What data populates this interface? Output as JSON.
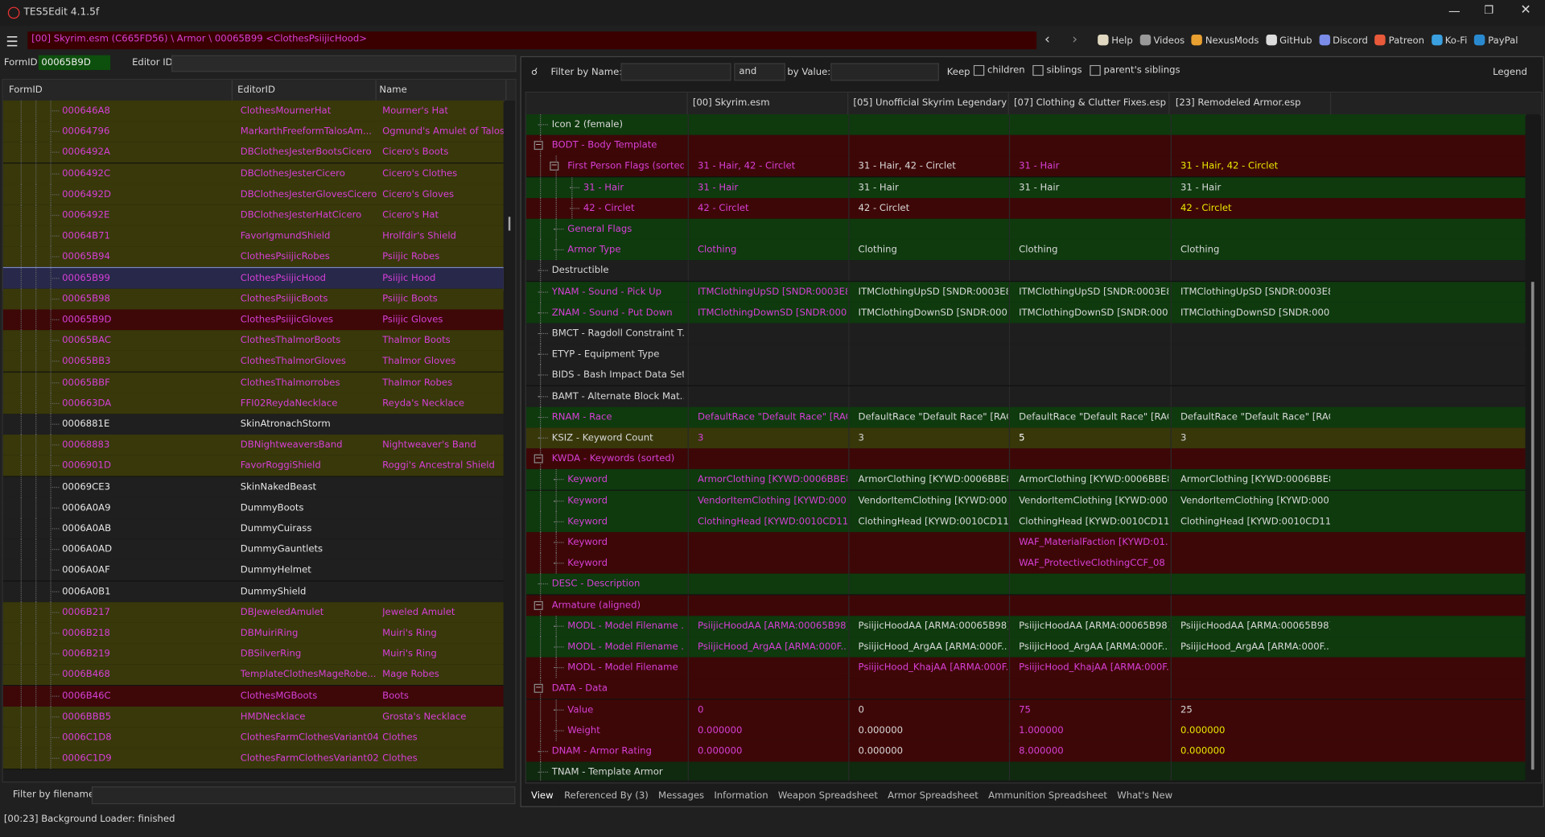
{
  "window": {
    "title": "TES5Edit 4.1.5f"
  },
  "path": "[00] Skyrim.esm (C665FD56) \\ Armor \\ 00065B99 <ClothesPsiijicHood>",
  "toolbar": [
    "Help",
    "Videos",
    "NexusMods",
    "GitHub",
    "Discord",
    "Patreon",
    "Ko-Fi",
    "PayPal"
  ],
  "form_id": {
    "label": "FormID",
    "value": "00065B9D"
  },
  "editor_id": {
    "label": "Editor ID"
  },
  "list": {
    "columns": [
      "FormID",
      "EditorID",
      "Name"
    ],
    "rows": [
      {
        "cells": [
          "000646A8",
          "ClothesMournerHat",
          "Mourner's Hat"
        ],
        "bg": "#38380a",
        "fg": "#d63fd6"
      },
      {
        "cells": [
          "00064796",
          "MarkarthFreeformTalosAm...",
          "Ogmund's Amulet of Talos"
        ],
        "bg": "#38380a",
        "fg": "#d63fd6"
      },
      {
        "cells": [
          "0006492A",
          "DBClothesJesterBootsCicero",
          "Cicero's Boots"
        ],
        "bg": "#38380a",
        "fg": "#d63fd6"
      },
      {
        "cells": [
          "0006492C",
          "DBClothesJesterCicero",
          "Cicero's Clothes"
        ],
        "bg": "#38380a",
        "fg": "#d63fd6"
      },
      {
        "cells": [
          "0006492D",
          "DBClothesJesterGlovesCicero",
          "Cicero's Gloves"
        ],
        "bg": "#38380a",
        "fg": "#d63fd6"
      },
      {
        "cells": [
          "0006492E",
          "DBClothesJesterHatCicero",
          "Cicero's Hat"
        ],
        "bg": "#38380a",
        "fg": "#d63fd6"
      },
      {
        "cells": [
          "00064B71",
          "FavorIgmundShield",
          "Hrolfdir's Shield"
        ],
        "bg": "#38380a",
        "fg": "#d63fd6"
      },
      {
        "cells": [
          "00065B94",
          "ClothesPsiijicRobes",
          "Psiijic Robes"
        ],
        "bg": "#38380a",
        "fg": "#d63fd6"
      },
      {
        "cells": [
          "00065B99",
          "ClothesPsiijicHood",
          "Psiijic Hood"
        ],
        "bg": "#27284a",
        "fg": "#d63fd6"
      },
      {
        "cells": [
          "00065B98",
          "ClothesPsiijicBoots",
          "Psiijic Boots"
        ],
        "bg": "#38380a",
        "fg": "#d63fd6"
      },
      {
        "cells": [
          "00065B9D",
          "ClothesPsiijicGloves",
          "Psiijic Gloves"
        ],
        "bg": "#3e0808",
        "fg": "#d63fd6"
      },
      {
        "cells": [
          "00065BAC",
          "ClothesThalmorBoots",
          "Thalmor Boots"
        ],
        "bg": "#38380a",
        "fg": "#d63fd6"
      },
      {
        "cells": [
          "00065BB3",
          "ClothesThalmorGloves",
          "Thalmor Gloves"
        ],
        "bg": "#38380a",
        "fg": "#d63fd6"
      },
      {
        "cells": [
          "00065BBF",
          "ClothesThalmorrobes",
          "Thalmor Robes"
        ],
        "bg": "#38380a",
        "fg": "#d63fd6"
      },
      {
        "cells": [
          "000663DA",
          "FFI02ReydaNecklace",
          "Reyda's Necklace"
        ],
        "bg": "#38380a",
        "fg": "#d63fd6"
      },
      {
        "cells": [
          "0006881E",
          "SkinAtronachStorm",
          null
        ],
        "bg": "#1f1f1f",
        "fg": "#e6e6e6"
      },
      {
        "cells": [
          "00068883",
          "DBNightweaversBand",
          "Nightweaver's Band"
        ],
        "bg": "#38380a",
        "fg": "#d63fd6"
      },
      {
        "cells": [
          "0006901D",
          "FavorRoggiShield",
          "Roggi's Ancestral Shield"
        ],
        "bg": "#38380a",
        "fg": "#d63fd6"
      },
      {
        "cells": [
          "00069CE3",
          "SkinNakedBeast",
          null
        ],
        "bg": "#1f1f1f",
        "fg": "#e6e6e6"
      },
      {
        "cells": [
          "0006A0A9",
          "DummyBoots",
          null
        ],
        "bg": "#1f1f1f",
        "fg": "#e6e6e6"
      },
      {
        "cells": [
          "0006A0AB",
          "DummyCuirass",
          null
        ],
        "bg": "#1f1f1f",
        "fg": "#e6e6e6"
      },
      {
        "cells": [
          "0006A0AD",
          "DummyGauntlets",
          null
        ],
        "bg": "#1f1f1f",
        "fg": "#e6e6e6"
      },
      {
        "cells": [
          "0006A0AF",
          "DummyHelmet",
          null
        ],
        "bg": "#1f1f1f",
        "fg": "#e6e6e6"
      },
      {
        "cells": [
          "0006A0B1",
          "DummyShield",
          null
        ],
        "bg": "#1f1f1f",
        "fg": "#e6e6e6"
      },
      {
        "cells": [
          "0006B217",
          "DBJeweledAmulet",
          "Jeweled Amulet"
        ],
        "bg": "#38380a",
        "fg": "#d63fd6"
      },
      {
        "cells": [
          "0006B218",
          "DBMuiriRing",
          "Muiri's Ring"
        ],
        "bg": "#38380a",
        "fg": "#d63fd6"
      },
      {
        "cells": [
          "0006B219",
          "DBSilverRing",
          "Muiri's Ring"
        ],
        "bg": "#38380a",
        "fg": "#d63fd6"
      },
      {
        "cells": [
          "0006B468",
          "TemplateClothesMageRobe...",
          "Mage Robes"
        ],
        "bg": "#38380a",
        "fg": "#d63fd6"
      },
      {
        "cells": [
          "0006B46C",
          "ClothesMGBoots",
          "Boots"
        ],
        "bg": "#3e0808",
        "fg": "#d63fd6"
      },
      {
        "cells": [
          "0006BBB5",
          "HMDNecklace",
          "Grosta's Necklace"
        ],
        "bg": "#38380a",
        "fg": "#d63fd6"
      },
      {
        "cells": [
          "0006C1D8",
          "ClothesFarmClothesVariant04",
          "Clothes"
        ],
        "bg": "#38380a",
        "fg": "#d63fd6"
      },
      {
        "cells": [
          "0006C1D9",
          "ClothesFarmClothesVariant02",
          "Clothes"
        ],
        "bg": "#38380a",
        "fg": "#d63fd6"
      }
    ]
  },
  "filename_filter": "Filter by filename:",
  "filter": {
    "name_label": "Filter by Name:",
    "op": "and",
    "value_label": "by Value:",
    "keep": "Keep",
    "checks": [
      "children",
      "siblings",
      "parent's siblings"
    ],
    "legend": "Legend"
  },
  "record": {
    "columns": [
      "[00] Skyrim.esm",
      "[05] Unofficial Skyrim Legendary ...",
      "[07] Clothing & Clutter Fixes.esp",
      "[23] Remodeled Armor.esp"
    ],
    "rows": [
      {
        "label": "Icon 2 (female)",
        "level": 1,
        "bg": "#0e3a0e",
        "fg": "#d8d8d8"
      },
      {
        "label": "BODT - Body Template",
        "level": 1,
        "expanded": true,
        "bg": "#3e0707",
        "fg": "#d63fd6"
      },
      {
        "label": "First Person Flags (sorted)",
        "level": 2,
        "expanded": true,
        "bg": "#3e0707",
        "fg": "#d63fd6",
        "values": [
          "31 - Hair, 42 - Circlet",
          "31 - Hair, 42 - Circlet",
          "31 - Hair",
          "31 - Hair, 42 - Circlet"
        ],
        "value_colors": [
          "#d63fd6",
          "#d8d8d8",
          "#d63fd6",
          "#e8e800"
        ]
      },
      {
        "label": "31 - Hair",
        "level": 3,
        "bg": "#0e3a0e",
        "fg": "#d63fd6",
        "values": [
          "31 - Hair",
          "31 - Hair",
          "31 - Hair",
          "31 - Hair"
        ],
        "value_colors": [
          "#d63fd6",
          "#d8d8d8",
          "#d8d8d8",
          "#d8d8d8"
        ]
      },
      {
        "label": "42 - Circlet",
        "level": 3,
        "bg": "#3e0707",
        "fg": "#d63fd6",
        "values": [
          "42 - Circlet",
          "42 - Circlet",
          null,
          "42 - Circlet"
        ],
        "value_colors": [
          "#d63fd6",
          "#d8d8d8",
          "#d8d8d8",
          "#e8e800"
        ]
      },
      {
        "label": "General Flags",
        "level": 2,
        "bg": "#0e3a0e",
        "fg": "#d63fd6"
      },
      {
        "label": "Armor Type",
        "level": 2,
        "bg": "#0e3a0e",
        "fg": "#d63fd6",
        "values": [
          "Clothing",
          "Clothing",
          "Clothing",
          "Clothing"
        ],
        "value_colors": [
          "#d63fd6",
          "#d8d8d8",
          "#d8d8d8",
          "#d8d8d8"
        ]
      },
      {
        "label": "Destructible",
        "level": 1,
        "bg": "#1e1e1e",
        "fg": "#d8d8d8"
      },
      {
        "label": "YNAM - Sound - Pick Up",
        "level": 1,
        "bg": "#0e3a0e",
        "fg": "#d63fd6",
        "values": [
          "ITMClothingUpSD [SNDR:0003E8...",
          "ITMClothingUpSD [SNDR:0003E8...",
          "ITMClothingUpSD [SNDR:0003E8...",
          "ITMClothingUpSD [SNDR:0003E8..."
        ],
        "value_colors": [
          "#d63fd6",
          "#d8d8d8",
          "#d8d8d8",
          "#d8d8d8"
        ]
      },
      {
        "label": "ZNAM - Sound - Put Down",
        "level": 1,
        "bg": "#0e3a0e",
        "fg": "#d63fd6",
        "values": [
          "ITMClothingDownSD [SNDR:000...",
          "ITMClothingDownSD [SNDR:000...",
          "ITMClothingDownSD [SNDR:000...",
          "ITMClothingDownSD [SNDR:000..."
        ],
        "value_colors": [
          "#d63fd6",
          "#d8d8d8",
          "#d8d8d8",
          "#d8d8d8"
        ]
      },
      {
        "label": "BMCT - Ragdoll Constraint T...",
        "level": 1,
        "bg": "#1e1e1e",
        "fg": "#d8d8d8"
      },
      {
        "label": "ETYP - Equipment Type",
        "level": 1,
        "bg": "#1e1e1e",
        "fg": "#d8d8d8"
      },
      {
        "label": "BIDS - Bash Impact Data Set",
        "level": 1,
        "bg": "#1e1e1e",
        "fg": "#d8d8d8"
      },
      {
        "label": "BAMT - Alternate Block Mat...",
        "level": 1,
        "bg": "#1e1e1e",
        "fg": "#d8d8d8"
      },
      {
        "label": "RNAM - Race",
        "level": 1,
        "bg": "#0e3a0e",
        "fg": "#d63fd6",
        "values": [
          "DefaultRace \"Default Race\" [RAC...",
          "DefaultRace \"Default Race\" [RAC...",
          "DefaultRace \"Default Race\" [RAC...",
          "DefaultRace \"Default Race\" [RAC..."
        ],
        "value_colors": [
          "#d63fd6",
          "#d8d8d8",
          "#d8d8d8",
          "#d8d8d8"
        ]
      },
      {
        "label": "KSIZ - Keyword Count",
        "level": 1,
        "bg": "#37370a",
        "fg": "#d8d8d8",
        "values": [
          "3",
          "3",
          "5",
          "3"
        ],
        "value_colors": [
          "#d63fd6",
          "#d8d8d8",
          "#ffffff",
          "#d8d8d8"
        ]
      },
      {
        "label": "KWDA - Keywords (sorted)",
        "level": 1,
        "expanded": true,
        "bg": "#3e0707",
        "fg": "#d63fd6"
      },
      {
        "label": "Keyword",
        "level": 2,
        "bg": "#0e3a0e",
        "fg": "#d63fd6",
        "values": [
          "ArmorClothing [KYWD:0006BBE8]",
          "ArmorClothing [KYWD:0006BBE8]",
          "ArmorClothing [KYWD:0006BBE8]",
          "ArmorClothing [KYWD:0006BBE8]"
        ],
        "value_colors": [
          "#d63fd6",
          "#d8d8d8",
          "#d8d8d8",
          "#d8d8d8"
        ]
      },
      {
        "label": "Keyword",
        "level": 2,
        "bg": "#0e3a0e",
        "fg": "#d63fd6",
        "values": [
          "VendorItemClothing [KYWD:000...",
          "VendorItemClothing [KYWD:000...",
          "VendorItemClothing [KYWD:000...",
          "VendorItemClothing [KYWD:000..."
        ],
        "value_colors": [
          "#d63fd6",
          "#d8d8d8",
          "#d8d8d8",
          "#d8d8d8"
        ]
      },
      {
        "label": "Keyword",
        "level": 2,
        "bg": "#0e3a0e",
        "fg": "#d63fd6",
        "values": [
          "ClothingHead [KYWD:0010CD11]",
          "ClothingHead [KYWD:0010CD11]",
          "ClothingHead [KYWD:0010CD11]",
          "ClothingHead [KYWD:0010CD11]"
        ],
        "value_colors": [
          "#d63fd6",
          "#d8d8d8",
          "#d8d8d8",
          "#d8d8d8"
        ]
      },
      {
        "label": "Keyword",
        "level": 2,
        "bg": "#3e0707",
        "fg": "#d63fd6",
        "values": [
          null,
          null,
          "WAF_MaterialFaction [KYWD:01...",
          null
        ],
        "value_colors": [
          "#d63fd6",
          "#d8d8d8",
          "#d63fd6",
          "#d8d8d8"
        ]
      },
      {
        "label": "Keyword",
        "level": 2,
        "bg": "#3e0707",
        "fg": "#d63fd6",
        "values": [
          null,
          null,
          "WAF_ProtectiveClothingCCF_08 ...",
          null
        ],
        "value_colors": [
          "#d63fd6",
          "#d8d8d8",
          "#d63fd6",
          "#d8d8d8"
        ]
      },
      {
        "label": "DESC - Description",
        "level": 1,
        "bg": "#0e3a0e",
        "fg": "#d63fd6"
      },
      {
        "label": "Armature (aligned)",
        "level": 1,
        "expanded": true,
        "bg": "#3e0707",
        "fg": "#d63fd6"
      },
      {
        "label": "MODL - Model Filename ...",
        "level": 2,
        "bg": "#0e3a0e",
        "fg": "#d63fd6",
        "values": [
          "PsiijicHoodAA [ARMA:00065B98]",
          "PsiijicHoodAA [ARMA:00065B98]",
          "PsiijicHoodAA [ARMA:00065B98]",
          "PsiijicHoodAA [ARMA:00065B98]"
        ],
        "value_colors": [
          "#d63fd6",
          "#d8d8d8",
          "#d8d8d8",
          "#d8d8d8"
        ]
      },
      {
        "label": "MODL - Model Filename ...",
        "level": 2,
        "bg": "#0e3a0e",
        "fg": "#d63fd6",
        "values": [
          "PsiijicHood_ArgAA [ARMA:000F...",
          "PsiijicHood_ArgAA [ARMA:000F...",
          "PsiijicHood_ArgAA [ARMA:000F...",
          "PsiijicHood_ArgAA [ARMA:000F..."
        ],
        "value_colors": [
          "#d63fd6",
          "#d8d8d8",
          "#d8d8d8",
          "#d8d8d8"
        ]
      },
      {
        "label": "MODL - Model Filename",
        "level": 2,
        "bg": "#3e0707",
        "fg": "#d63fd6",
        "values": [
          null,
          "PsiijicHood_KhajAA [ARMA:000F...",
          "PsiijicHood_KhajAA [ARMA:000F...",
          null
        ],
        "value_colors": [
          "#d8d8d8",
          "#d63fd6",
          "#d63fd6",
          "#d8d8d8"
        ]
      },
      {
        "label": "DATA - Data",
        "level": 1,
        "expanded": true,
        "bg": "#3e0707",
        "fg": "#d63fd6"
      },
      {
        "label": "Value",
        "level": 2,
        "bg": "#3e0707",
        "fg": "#d63fd6",
        "values": [
          "0",
          "0",
          "75",
          "25"
        ],
        "value_colors": [
          "#d63fd6",
          "#d8d8d8",
          "#d63fd6",
          "#d8d8d8"
        ]
      },
      {
        "label": "Weight",
        "level": 2,
        "bg": "#3e0707",
        "fg": "#d63fd6",
        "values": [
          "0.000000",
          "0.000000",
          "1.000000",
          "0.000000"
        ],
        "value_colors": [
          "#d63fd6",
          "#d8d8d8",
          "#d63fd6",
          "#e8e800"
        ]
      },
      {
        "label": "DNAM - Armor Rating",
        "level": 1,
        "bg": "#3e0707",
        "fg": "#d63fd6",
        "values": [
          "0.000000",
          "0.000000",
          "8.000000",
          "0.000000"
        ],
        "value_colors": [
          "#d63fd6",
          "#d8d8d8",
          "#d63fd6",
          "#e8e800"
        ]
      },
      {
        "label": "TNAM - Template Armor",
        "level": 1,
        "bg": "#0f2a0f",
        "fg": "#d8d8d8"
      }
    ]
  },
  "tabs": [
    "View",
    "Referenced By (3)",
    "Messages",
    "Information",
    "Weapon Spreadsheet",
    "Armor Spreadsheet",
    "Ammunition Spreadsheet",
    "What's New"
  ],
  "status": "[00:23] Background Loader: finished"
}
